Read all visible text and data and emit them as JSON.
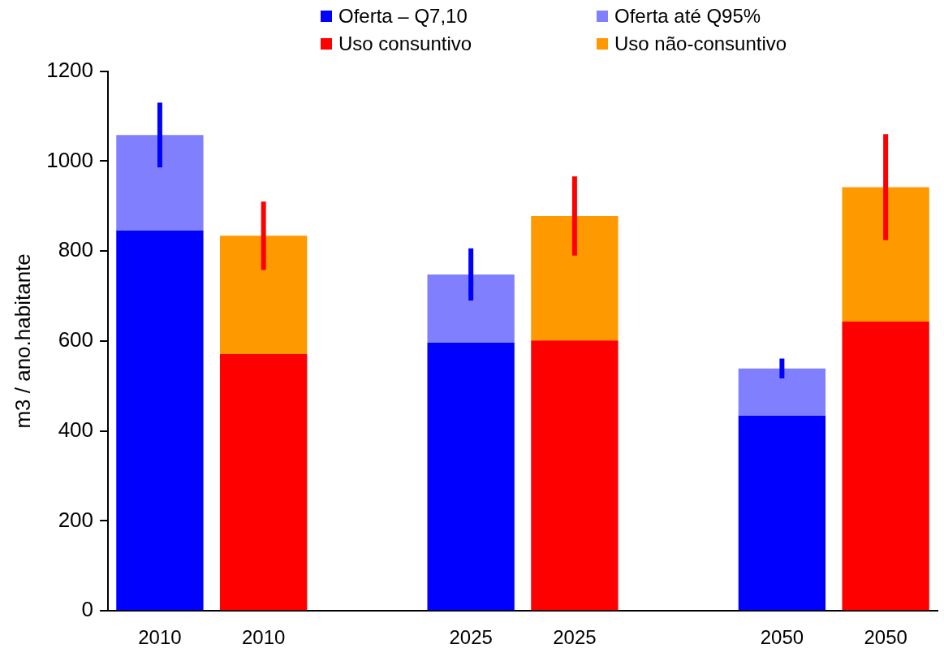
{
  "chart_data": {
    "type": "bar",
    "stacked": true,
    "ylabel": "m3 / ano.habitante",
    "categories": [
      "2010",
      "2010",
      null,
      "2025",
      "2025",
      null,
      "2050",
      "2050"
    ],
    "series": [
      {
        "name": "Oferta – Q7,10",
        "color": "#0000ff",
        "values": [
          846,
          null,
          null,
          596,
          null,
          null,
          434,
          null
        ]
      },
      {
        "name": "Oferta até Q95%",
        "color": "#8080ff",
        "values": [
          212,
          null,
          null,
          152,
          null,
          null,
          105,
          null
        ],
        "errors": [
          72,
          null,
          null,
          58,
          null,
          null,
          22,
          null
        ]
      },
      {
        "name": "Uso consuntivo",
        "color": "#ff0000",
        "values": [
          null,
          571,
          null,
          null,
          601,
          null,
          null,
          643
        ]
      },
      {
        "name": "Uso não-consuntivo",
        "color": "#ff9900",
        "values": [
          null,
          263,
          null,
          null,
          277,
          null,
          null,
          299
        ],
        "errors": [
          null,
          76,
          null,
          null,
          88,
          null,
          null,
          118
        ]
      }
    ],
    "ylim": [
      0,
      1200
    ],
    "yticks": [
      0,
      200,
      400,
      600,
      800,
      1000,
      1200
    ],
    "grid": false,
    "legend": "top"
  }
}
